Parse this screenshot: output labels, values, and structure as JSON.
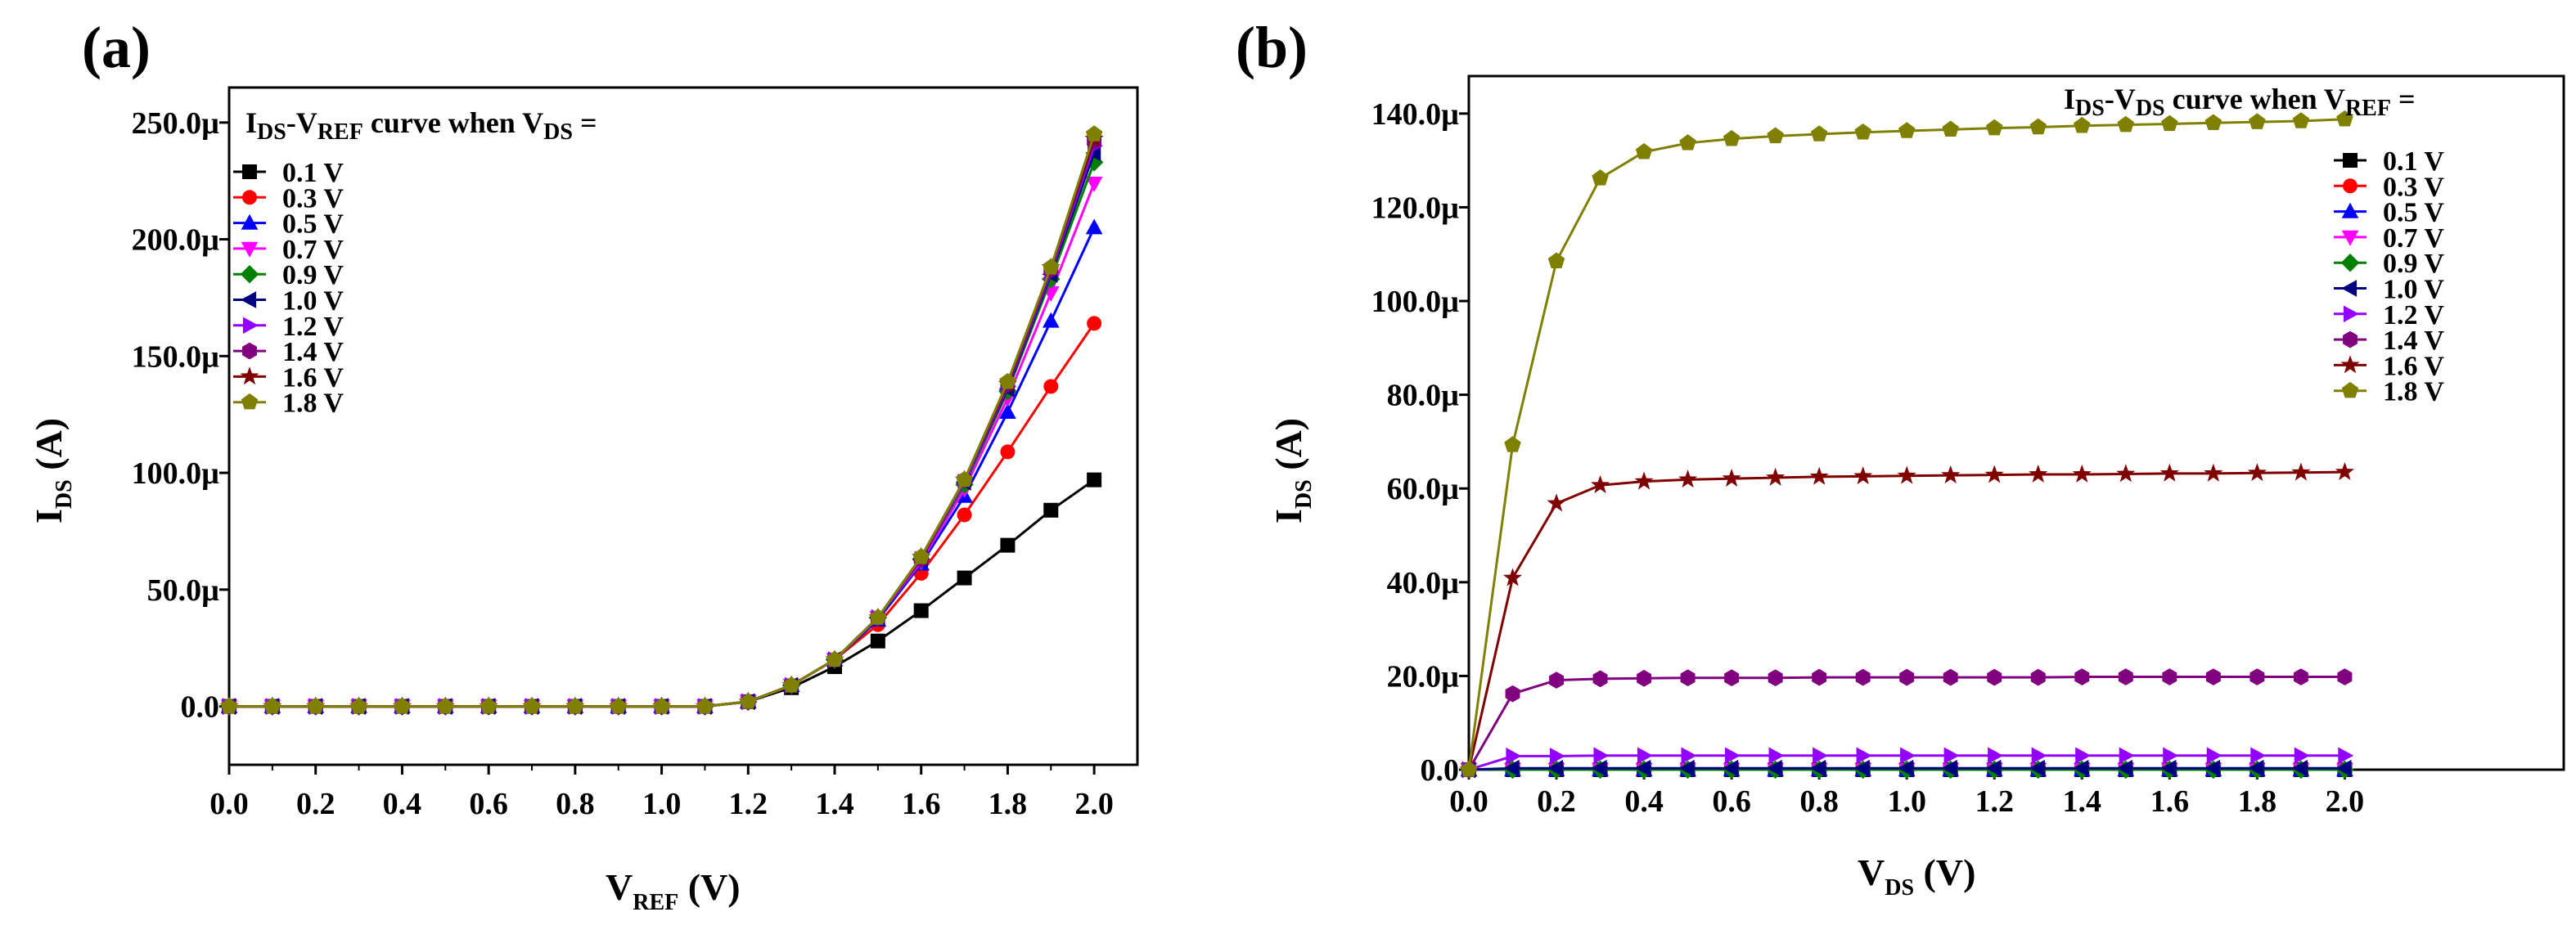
{
  "panels": [
    {
      "label": "(a)",
      "xlabel": {
        "main": "V",
        "sub": "REF",
        "unit": " (V)"
      },
      "ylabel": {
        "main": "I",
        "sub": "DS",
        "unit": " (A)"
      },
      "legend_title": {
        "a": "I",
        "a_sub": "DS",
        "b": "-V",
        "b_sub": "REF",
        "c": " curve when V",
        "c_sub": "DS",
        "d": " ="
      }
    },
    {
      "label": "(b)",
      "xlabel": {
        "main": "V",
        "sub": "DS",
        "unit": " (V)"
      },
      "ylabel": {
        "main": "I",
        "sub": "DS",
        "unit": " (A)"
      },
      "legend_title": {
        "a": "I",
        "a_sub": "DS",
        "b": "-V",
        "b_sub": "DS",
        "c": " curve when V",
        "c_sub": "REF",
        "d": " ="
      }
    }
  ],
  "chart_data": [
    {
      "type": "line",
      "title": "",
      "legend_placement": "top-left",
      "x": [
        0.0,
        0.1,
        0.2,
        0.3,
        0.4,
        0.5,
        0.6,
        0.7,
        0.8,
        0.9,
        1.0,
        1.1,
        1.2,
        1.3,
        1.4,
        1.5,
        1.6,
        1.7,
        1.8,
        1.9,
        2.0
      ],
      "xlim": [
        0.0,
        2.1
      ],
      "ylim": [
        -2.5e-05,
        0.000265
      ],
      "xticks": [
        0.0,
        0.2,
        0.4,
        0.6,
        0.8,
        1.0,
        1.2,
        1.4,
        1.6,
        1.8,
        2.0
      ],
      "xtick_labels": [
        "0.0",
        "0.2",
        "0.4",
        "0.6",
        "0.8",
        "1.0",
        "1.2",
        "1.4",
        "1.6",
        "1.8",
        "2.0"
      ],
      "yticks": [
        0,
        5e-05,
        0.0001,
        0.00015,
        0.0002,
        0.00025
      ],
      "ytick_labels": [
        "0.0",
        "50.0µ",
        "100.0µ",
        "150.0µ",
        "200.0µ",
        "250.0µ"
      ],
      "series": [
        {
          "name": "0.1 V",
          "color": "#000000",
          "marker": "square",
          "values": [
            0,
            0,
            0,
            0,
            0,
            0,
            0,
            0,
            0,
            0,
            0,
            0,
            2e-06,
            8e-06,
            1.7e-05,
            2.8e-05,
            4.1e-05,
            5.5e-05,
            6.9e-05,
            8.4e-05,
            9.7e-05
          ]
        },
        {
          "name": "0.3 V",
          "color": "#ff0000",
          "marker": "circle",
          "values": [
            0,
            0,
            0,
            0,
            0,
            0,
            0,
            0,
            0,
            0,
            0,
            0,
            2e-06,
            9e-06,
            2e-05,
            3.5e-05,
            5.7e-05,
            8.2e-05,
            0.000109,
            0.000137,
            0.000164
          ]
        },
        {
          "name": "0.5 V",
          "color": "#0000ff",
          "marker": "triangle-up",
          "values": [
            0,
            0,
            0,
            0,
            0,
            0,
            0,
            0,
            0,
            0,
            0,
            0,
            2e-06,
            9e-06,
            2e-05,
            3.7e-05,
            6.1e-05,
            9e-05,
            0.000126,
            0.000165,
            0.000205
          ]
        },
        {
          "name": "0.7 V",
          "color": "#ff00ff",
          "marker": "triangle-down",
          "values": [
            0,
            0,
            0,
            0,
            0,
            0,
            0,
            0,
            0,
            0,
            0,
            0,
            2e-06,
            9e-06,
            2e-05,
            3.8e-05,
            6.2e-05,
            9.3e-05,
            0.000132,
            0.000177,
            0.000224
          ]
        },
        {
          "name": "0.9 V",
          "color": "#008000",
          "marker": "diamond",
          "values": [
            0,
            0,
            0,
            0,
            0,
            0,
            0,
            0,
            0,
            0,
            0,
            0,
            2e-06,
            9e-06,
            2e-05,
            3.8e-05,
            6.3e-05,
            9.5e-05,
            0.000135,
            0.000183,
            0.000233
          ]
        },
        {
          "name": "1.0 V",
          "color": "#000080",
          "marker": "triangle-left",
          "values": [
            0,
            0,
            0,
            0,
            0,
            0,
            0,
            0,
            0,
            0,
            0,
            0,
            2e-06,
            9e-06,
            2e-05,
            3.8e-05,
            6.3e-05,
            9.6e-05,
            0.000136,
            0.000185,
            0.000237
          ]
        },
        {
          "name": "1.2 V",
          "color": "#9400ff",
          "marker": "triangle-right",
          "values": [
            0,
            0,
            0,
            0,
            0,
            0,
            0,
            0,
            0,
            0,
            0,
            0,
            2e-06,
            9e-06,
            2e-05,
            3.8e-05,
            6.3e-05,
            9.6e-05,
            0.000137,
            0.000186,
            0.00024
          ]
        },
        {
          "name": "1.4 V",
          "color": "#800080",
          "marker": "hexagon",
          "values": [
            0,
            0,
            0,
            0,
            0,
            0,
            0,
            0,
            0,
            0,
            0,
            0,
            2e-06,
            9e-06,
            2e-05,
            3.8e-05,
            6.3e-05,
            9.7e-05,
            0.000138,
            0.000187,
            0.000242
          ]
        },
        {
          "name": "1.6 V",
          "color": "#800000",
          "marker": "star",
          "values": [
            0,
            0,
            0,
            0,
            0,
            0,
            0,
            0,
            0,
            0,
            0,
            0,
            2e-06,
            9e-06,
            2e-05,
            3.8e-05,
            6.4e-05,
            9.7e-05,
            0.000138,
            0.000188,
            0.000243
          ]
        },
        {
          "name": "1.8 V",
          "color": "#808000",
          "marker": "pentagon",
          "values": [
            0,
            0,
            0,
            0,
            0,
            0,
            0,
            0,
            0,
            0,
            0,
            0,
            2e-06,
            9e-06,
            2e-05,
            3.8e-05,
            6.4e-05,
            9.7e-05,
            0.000139,
            0.000188,
            0.000245
          ]
        }
      ]
    },
    {
      "type": "line",
      "title": "",
      "legend_placement": "top-right",
      "x": [
        0.0,
        0.1,
        0.2,
        0.3,
        0.4,
        0.5,
        0.6,
        0.7,
        0.8,
        0.9,
        1.0,
        1.1,
        1.2,
        1.3,
        1.4,
        1.5,
        1.6,
        1.7,
        1.8,
        1.9,
        2.0
      ],
      "xlim": [
        0.0,
        2.5
      ],
      "ylim": [
        0.0,
        0.000148
      ],
      "xticks": [
        0.0,
        0.2,
        0.4,
        0.6,
        0.8,
        1.0,
        1.2,
        1.4,
        1.6,
        1.8,
        2.0
      ],
      "xtick_labels": [
        "0.0",
        "0.2",
        "0.4",
        "0.6",
        "0.8",
        "1.0",
        "1.2",
        "1.4",
        "1.6",
        "1.8",
        "2.0"
      ],
      "yticks": [
        0,
        2e-05,
        4e-05,
        6e-05,
        8e-05,
        0.0001,
        0.00012,
        0.00014
      ],
      "ytick_labels": [
        "0.0",
        "20.0µ",
        "40.0µ",
        "60.0µ",
        "80.0µ",
        "100.0µ",
        "120.0µ",
        "140.0µ"
      ],
      "series": [
        {
          "name": "0.1 V",
          "color": "#000000",
          "marker": "square",
          "values": [
            0,
            0,
            0,
            0,
            0,
            0,
            0,
            0,
            0,
            0,
            0,
            0,
            0,
            0,
            0,
            0,
            0,
            0,
            0,
            0,
            0
          ]
        },
        {
          "name": "0.3 V",
          "color": "#ff0000",
          "marker": "circle",
          "values": [
            0,
            0,
            0,
            0,
            0,
            0,
            0,
            0,
            0,
            0,
            0,
            0,
            0,
            0,
            0,
            0,
            0,
            0,
            0,
            0,
            0
          ]
        },
        {
          "name": "0.5 V",
          "color": "#0000ff",
          "marker": "triangle-up",
          "values": [
            0,
            0,
            0,
            0,
            0,
            0,
            0,
            0,
            0,
            0,
            0,
            0,
            0,
            0,
            0,
            0,
            0,
            0,
            0,
            0,
            0
          ]
        },
        {
          "name": "0.7 V",
          "color": "#ff00ff",
          "marker": "triangle-down",
          "values": [
            0,
            0,
            0,
            0,
            0,
            0,
            0,
            0,
            0,
            0,
            0,
            0,
            0,
            0,
            0,
            0,
            0,
            0,
            0,
            0,
            0
          ]
        },
        {
          "name": "0.9 V",
          "color": "#008000",
          "marker": "diamond",
          "values": [
            0,
            0,
            0,
            0,
            0,
            0,
            0,
            0,
            0,
            0,
            0,
            0,
            0,
            0,
            0,
            0,
            0,
            0,
            0,
            0,
            0
          ]
        },
        {
          "name": "1.0 V",
          "color": "#000080",
          "marker": "triangle-left",
          "values": [
            0,
            3e-07,
            3e-07,
            3e-07,
            3e-07,
            3e-07,
            3e-07,
            3e-07,
            3e-07,
            3e-07,
            3e-07,
            3e-07,
            3e-07,
            3e-07,
            3e-07,
            3e-07,
            3e-07,
            3e-07,
            3e-07,
            3e-07,
            3e-07
          ]
        },
        {
          "name": "1.2 V",
          "color": "#9400ff",
          "marker": "triangle-right",
          "values": [
            0,
            2.9e-06,
            2.9e-06,
            3e-06,
            3e-06,
            3e-06,
            3e-06,
            3e-06,
            3e-06,
            3e-06,
            3e-06,
            3e-06,
            3e-06,
            3e-06,
            3e-06,
            3e-06,
            3e-06,
            3e-06,
            3e-06,
            3e-06,
            3e-06
          ]
        },
        {
          "name": "1.4 V",
          "color": "#800080",
          "marker": "hexagon",
          "values": [
            0,
            1.62e-05,
            1.91e-05,
            1.94e-05,
            1.95e-05,
            1.96e-05,
            1.96e-05,
            1.96e-05,
            1.97e-05,
            1.97e-05,
            1.97e-05,
            1.97e-05,
            1.97e-05,
            1.97e-05,
            1.98e-05,
            1.98e-05,
            1.98e-05,
            1.98e-05,
            1.98e-05,
            1.98e-05,
            1.98e-05
          ]
        },
        {
          "name": "1.6 V",
          "color": "#800000",
          "marker": "star",
          "values": [
            0,
            4.09e-05,
            5.68e-05,
            6.07e-05,
            6.15e-05,
            6.19e-05,
            6.21e-05,
            6.23e-05,
            6.25e-05,
            6.26e-05,
            6.27e-05,
            6.28e-05,
            6.29e-05,
            6.3e-05,
            6.3e-05,
            6.31e-05,
            6.32e-05,
            6.32e-05,
            6.33e-05,
            6.34e-05,
            6.35e-05
          ]
        },
        {
          "name": "1.8 V",
          "color": "#808000",
          "marker": "pentagon",
          "values": [
            0,
            6.93e-05,
            0.0001085,
            0.0001262,
            0.0001318,
            0.0001337,
            0.0001346,
            0.0001352,
            0.0001356,
            0.000136,
            0.0001363,
            0.0001366,
            0.0001369,
            0.0001371,
            0.0001374,
            0.0001376,
            0.0001378,
            0.000138,
            0.0001382,
            0.0001384,
            0.0001388
          ]
        }
      ]
    }
  ]
}
